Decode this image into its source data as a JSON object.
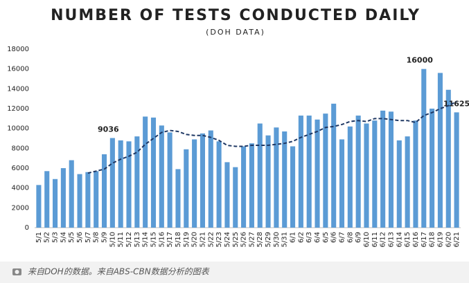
{
  "chart_data": {
    "type": "bar",
    "title": "NUMBER OF TESTS CONDUCTED DAILY",
    "subtitle": "(DOH DATA)",
    "categories": [
      "5/1",
      "5/2",
      "5/3",
      "5/4",
      "5/5",
      "5/6",
      "5/7",
      "5/8",
      "5/9",
      "5/10",
      "5/11",
      "5/12",
      "5/13",
      "5/14",
      "5/15",
      "5/16",
      "5/17",
      "5/18",
      "5/19",
      "5/20",
      "5/21",
      "5/22",
      "5/23",
      "5/24",
      "5/25",
      "5/26",
      "5/27",
      "5/28",
      "5/29",
      "5/30",
      "5/31",
      "6/1",
      "6/2",
      "6/3",
      "6/4",
      "6/5",
      "6/6",
      "6/7",
      "6/8",
      "6/9",
      "6/10",
      "6/11",
      "6/12",
      "6/13",
      "6/14",
      "6/15",
      "6/16",
      "6/17",
      "6/18",
      "6/19",
      "6/20",
      "6/21"
    ],
    "series": [
      {
        "type": "bar",
        "color": "#5b9bd5",
        "values": [
          4300,
          5700,
          4900,
          6000,
          6800,
          5400,
          5600,
          5700,
          7400,
          9036,
          8800,
          8700,
          9200,
          11200,
          11100,
          10300,
          9600,
          5900,
          7900,
          8900,
          9500,
          9800,
          8700,
          6600,
          6100,
          8200,
          8500,
          10500,
          9300,
          10100,
          9700,
          8200,
          11300,
          11300,
          10900,
          11500,
          12500,
          8900,
          10200,
          11300,
          10500,
          10800,
          11800,
          11700,
          8800,
          9200,
          10800,
          16000,
          12000,
          15600,
          13900,
          11625
        ],
        "value_labels": [
          null,
          null,
          null,
          null,
          null,
          null,
          null,
          null,
          null,
          "9036",
          null,
          null,
          null,
          null,
          null,
          null,
          null,
          null,
          null,
          null,
          null,
          null,
          null,
          null,
          null,
          null,
          null,
          null,
          null,
          null,
          null,
          null,
          null,
          null,
          null,
          null,
          null,
          null,
          null,
          null,
          null,
          null,
          null,
          null,
          null,
          null,
          null,
          "16000",
          null,
          null,
          null,
          "11625"
        ]
      },
      {
        "type": "line",
        "color": "#1f3864",
        "dashed": true,
        "values": [
          null,
          null,
          null,
          null,
          null,
          null,
          5500,
          5700,
          5900,
          6500,
          6900,
          7200,
          7600,
          8400,
          9000,
          9600,
          9800,
          9700,
          9400,
          9300,
          9300,
          9100,
          8800,
          8300,
          8200,
          8200,
          8300,
          8300,
          8300,
          8400,
          8500,
          8700,
          9100,
          9400,
          9700,
          10100,
          10200,
          10400,
          10700,
          10800,
          10700,
          11000,
          11000,
          10900,
          10800,
          10800,
          10600,
          11300,
          11600,
          12000,
          12300,
          12700
        ]
      }
    ],
    "ylim": [
      0,
      18000
    ],
    "yticks": [
      0,
      2000,
      4000,
      6000,
      8000,
      10000,
      12000,
      14000,
      16000,
      18000
    ],
    "grid": false
  },
  "footer": {
    "caption": "来自DOH的数据。来自ABS-CBN数据分析的图表"
  }
}
